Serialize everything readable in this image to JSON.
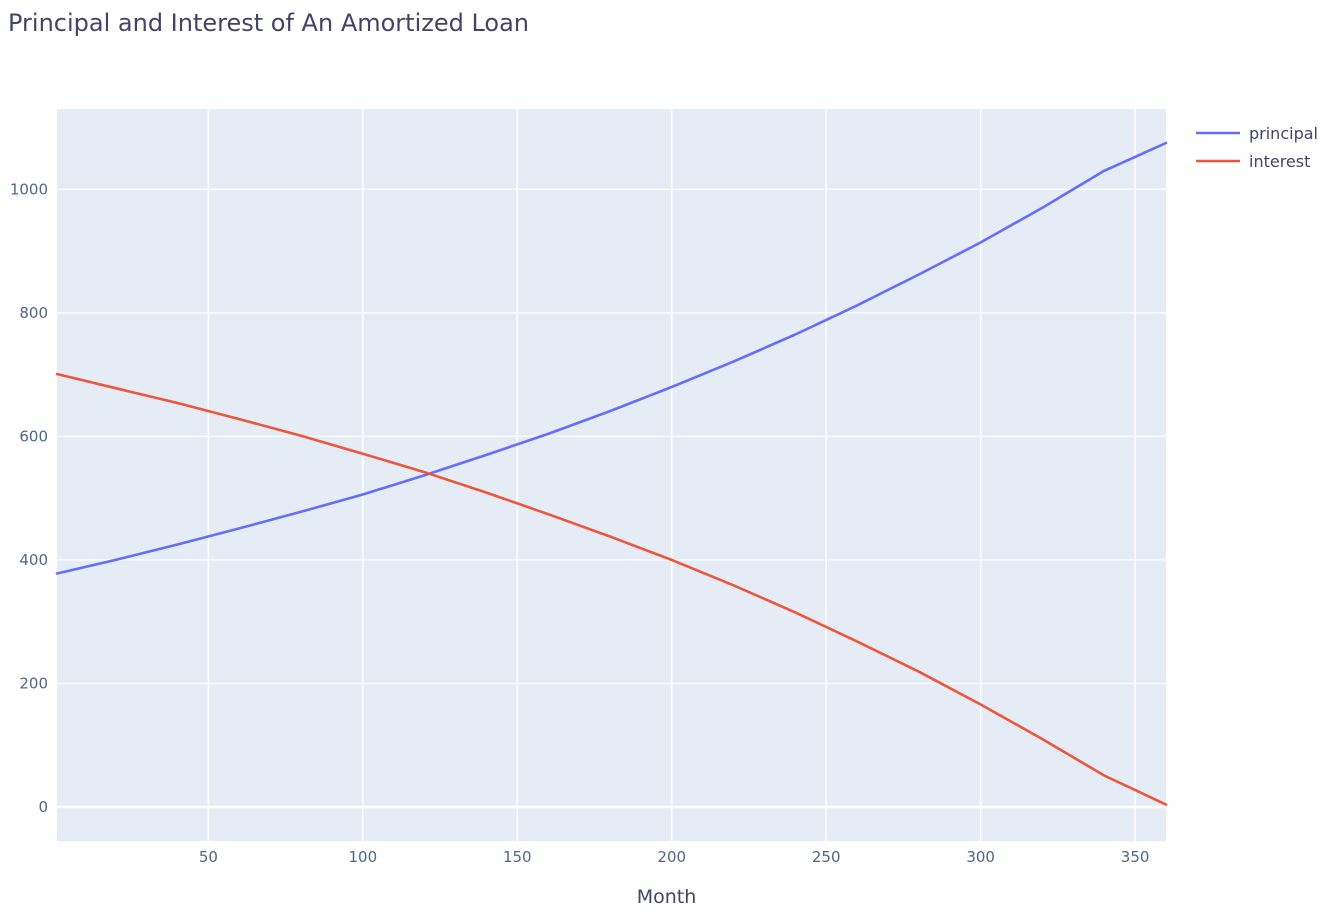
{
  "chart_data": {
    "type": "line",
    "title": "Principal and Interest of An Amortized Loan",
    "xlabel": "Month",
    "ylabel": "",
    "xlim": [
      1,
      360
    ],
    "ylim": [
      -55,
      1130
    ],
    "x_ticks": [
      50,
      100,
      150,
      200,
      250,
      300,
      350
    ],
    "y_ticks": [
      0,
      200,
      400,
      600,
      800,
      1000
    ],
    "grid": true,
    "legend_position": "top-right",
    "plot_background": "#E5ECF6",
    "gridline_color": "#FFFFFF",
    "x": [
      1,
      20,
      40,
      60,
      80,
      100,
      120,
      140,
      160,
      180,
      200,
      220,
      240,
      260,
      280,
      300,
      320,
      340,
      360
    ],
    "series": [
      {
        "name": "principal",
        "color": "#636EFA",
        "values": [
          378,
          400,
          425,
          451,
          478,
          506,
          537,
          570,
          604,
          641,
          680,
          721,
          765,
          812,
          862,
          914,
          970,
          1030,
          1075
        ]
      },
      {
        "name": "interest",
        "color": "#EF553B",
        "values": [
          701,
          678,
          654,
          628,
          601,
          572,
          542,
          509,
          474,
          438,
          400,
          359,
          315,
          268,
          219,
          166,
          110,
          51,
          4
        ]
      }
    ]
  }
}
